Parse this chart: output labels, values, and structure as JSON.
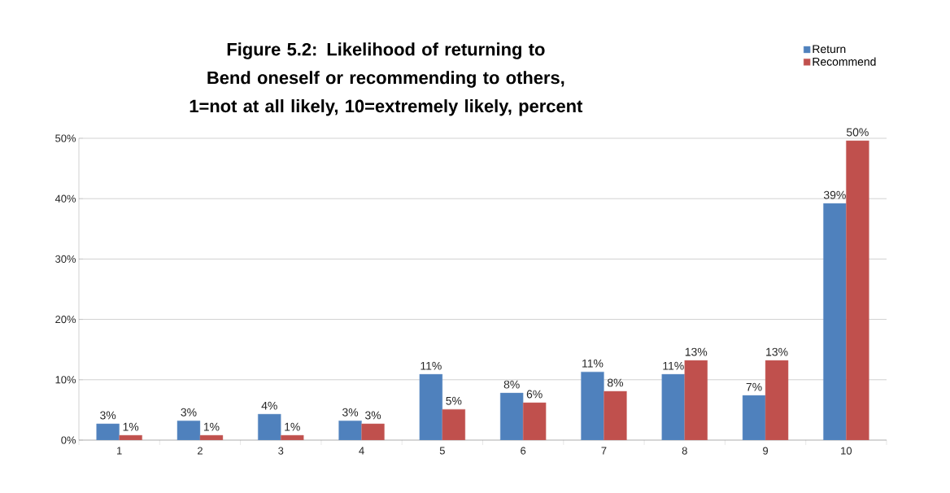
{
  "chart_data": {
    "type": "bar",
    "title": "Figure 5.2: Likelihood of returning to Bend oneself or recommending to others,",
    "subtitle": "1=not at all likely, 10=extremely likely, percent",
    "categories": [
      "1",
      "2",
      "3",
      "4",
      "5",
      "6",
      "7",
      "8",
      "9",
      "10"
    ],
    "series": [
      {
        "name": "Return",
        "color": "#4f81bd",
        "values": [
          2.7,
          3.2,
          4.3,
          3.2,
          10.9,
          7.8,
          11.3,
          10.9,
          7.4,
          39.2
        ],
        "value_labels": [
          "3%",
          "3%",
          "4%",
          "3%",
          "11%",
          "8%",
          "11%",
          "11%",
          "7%",
          "39%"
        ]
      },
      {
        "name": "Recommend",
        "color": "#c0504d",
        "values": [
          0.8,
          0.8,
          0.8,
          2.7,
          5.1,
          6.2,
          8.1,
          13.2,
          13.2,
          49.6
        ],
        "value_labels": [
          "1%",
          "1%",
          "1%",
          "3%",
          "5%",
          "6%",
          "8%",
          "13%",
          "13%",
          "50%"
        ]
      }
    ],
    "ylim": [
      0,
      50
    ],
    "yticks": [
      {
        "value": 0,
        "label": "0%"
      },
      {
        "value": 10,
        "label": "10%"
      },
      {
        "value": 20,
        "label": "20%"
      },
      {
        "value": 30,
        "label": "30%"
      },
      {
        "value": 40,
        "label": "40%"
      },
      {
        "value": 50,
        "label": "50%"
      }
    ],
    "grid": "y",
    "legend": "top right"
  }
}
